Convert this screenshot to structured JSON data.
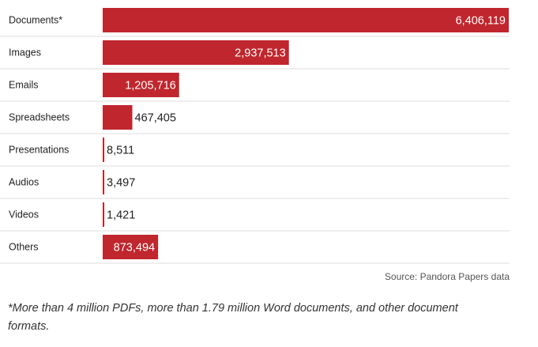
{
  "chart_data": {
    "type": "bar",
    "orientation": "horizontal",
    "categories": [
      "Documents*",
      "Images",
      "Emails",
      "Spreadsheets",
      "Presentations",
      "Audios",
      "Videos",
      "Others"
    ],
    "values": [
      6406119,
      2937513,
      1205716,
      467405,
      8511,
      3497,
      1421,
      873494
    ],
    "value_labels": [
      "6,406,119",
      "2,937,513",
      "1,205,716",
      "467,405",
      "8,511",
      "3,497",
      "1,421",
      "873,494"
    ],
    "xlim": [
      0,
      6406119
    ],
    "grid": false,
    "legend": "none",
    "bar_color": "#c0262d"
  },
  "source": "Source: Pandora Papers data",
  "footnote": "*More than 4 million PDFs, more than 1.79 million Word documents, and other document formats."
}
